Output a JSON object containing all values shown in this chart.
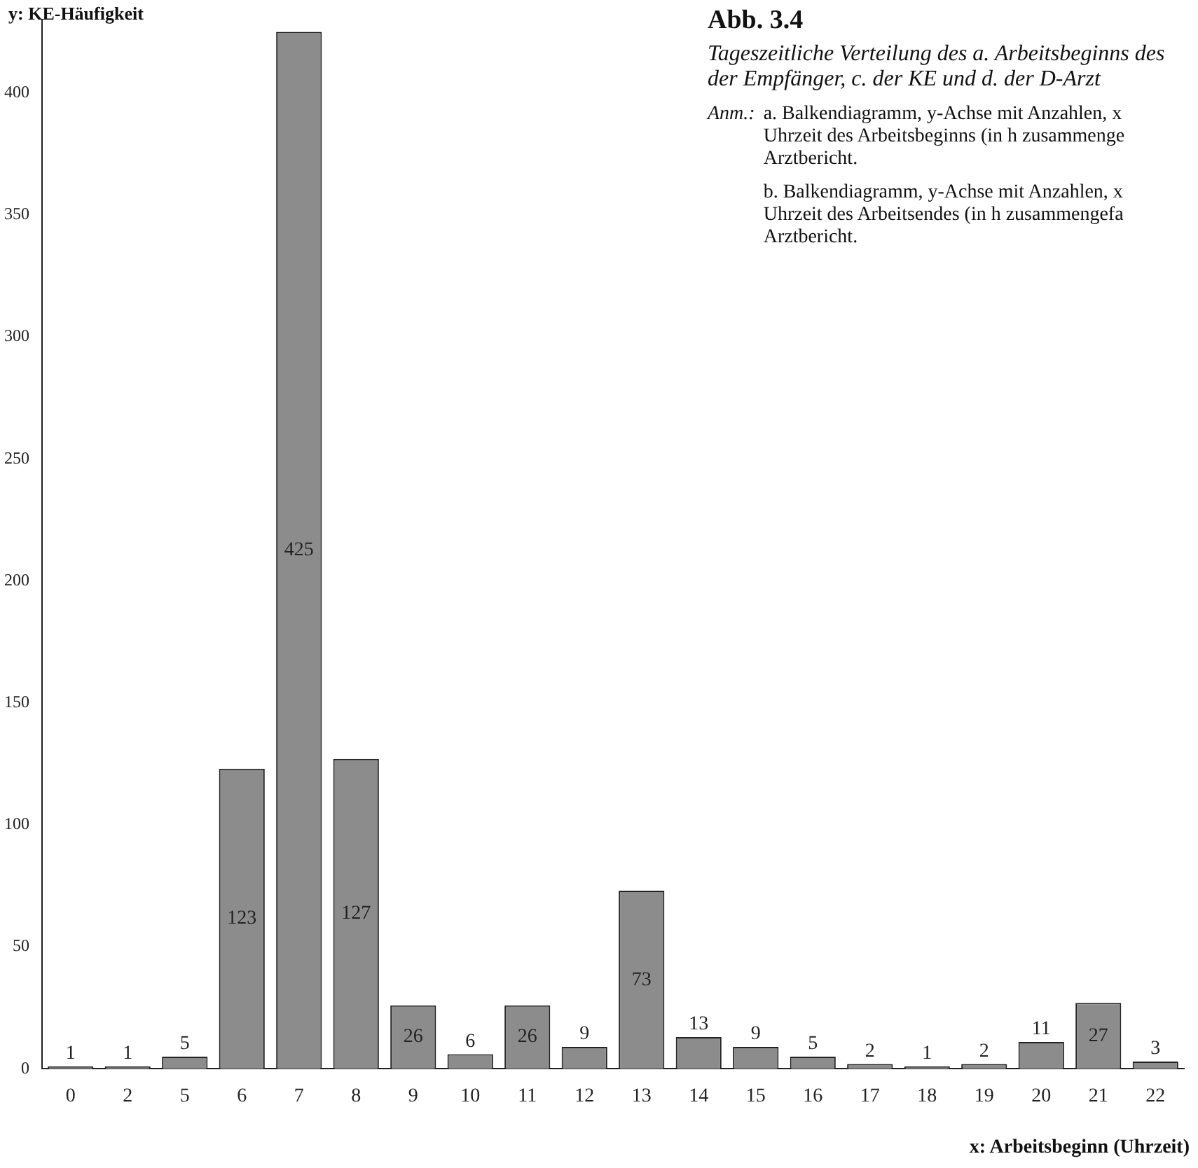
{
  "chart_data": {
    "type": "bar",
    "title": "Abb. 3.4",
    "subtitle": "Tageszeitliche Verteilung des a. Arbeitsbeginns des der Empfänger, c. der KE und d. der D-Arzt",
    "annotations": [
      "Anm.:",
      "a. Balkendiagramm, y-Achse mit Anzahlen, x Uhrzeit des Arbeitsbeginns (in h zusammenge Arztbericht.",
      "b. Balkendiagramm, y-Achse mit Anzahlen, x Uhrzeit des Arbeitsendes (in h zusammengefa Arztbericht."
    ],
    "ylabel": "y: KE-Häufigkeit",
    "xlabel": "x: Arbeitsbeginn (Uhrzeit)",
    "categories": [
      "0",
      "2",
      "5",
      "6",
      "7",
      "8",
      "9",
      "10",
      "11",
      "12",
      "13",
      "14",
      "15",
      "16",
      "17",
      "18",
      "19",
      "20",
      "21",
      "22"
    ],
    "values": [
      1,
      1,
      5,
      123,
      425,
      127,
      26,
      6,
      26,
      9,
      73,
      13,
      9,
      5,
      2,
      1,
      2,
      11,
      27,
      3
    ],
    "color": "#8c8c8c",
    "ylim": [
      0,
      430
    ],
    "yticks": [
      0,
      50,
      100,
      150,
      200,
      250,
      300,
      350,
      400
    ],
    "grid": false,
    "legend": false,
    "data_labels": true
  }
}
